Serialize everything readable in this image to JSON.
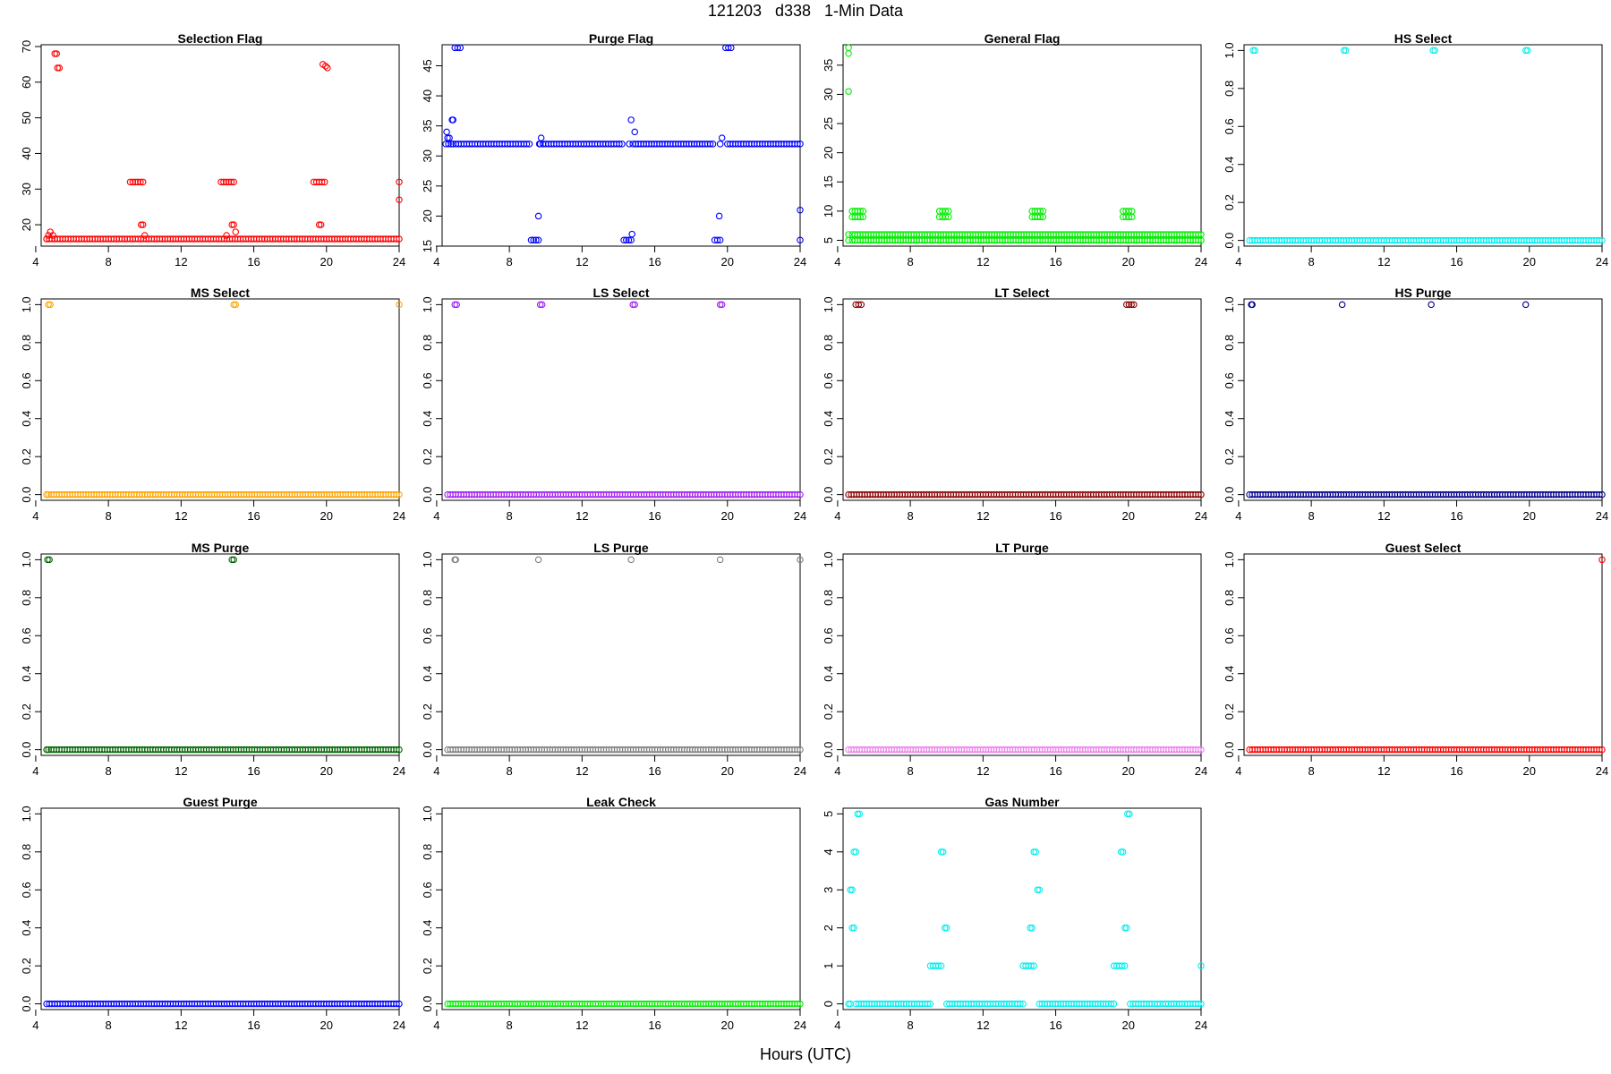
{
  "title": "121203   d338   1-Min Data",
  "xlabel": "Hours (UTC)",
  "chart_data": [
    {
      "type": "scatter",
      "title": "Selection Flag",
      "color": "#ff0000",
      "xlim": [
        4.3,
        24
      ],
      "ylim": [
        14,
        70.5
      ],
      "yticks": [
        20,
        30,
        40,
        50,
        60,
        70
      ],
      "xticks": [
        4,
        8,
        12,
        16,
        20,
        24
      ],
      "series": [
        {
          "x": [
            4.6,
            24
          ],
          "y": [
            16,
            16
          ],
          "dense": true
        },
        {
          "x": [
            9.2,
            9.9
          ],
          "y": [
            32,
            32
          ],
          "dense": true
        },
        {
          "x": [
            14.2,
            14.9
          ],
          "y": [
            32,
            32
          ],
          "dense": true
        },
        {
          "x": [
            19.3,
            19.9
          ],
          "y": [
            32,
            32
          ],
          "dense": true
        }
      ],
      "points": [
        [
          4.6,
          16
        ],
        [
          4.7,
          17
        ],
        [
          4.8,
          18
        ],
        [
          4.95,
          17
        ],
        [
          5.05,
          68
        ],
        [
          5.15,
          68
        ],
        [
          5.2,
          64
        ],
        [
          5.3,
          64
        ],
        [
          9.8,
          20
        ],
        [
          9.9,
          20
        ],
        [
          10.0,
          17
        ],
        [
          14.5,
          17
        ],
        [
          14.8,
          20
        ],
        [
          14.9,
          20
        ],
        [
          15.0,
          18
        ],
        [
          19.6,
          20
        ],
        [
          19.7,
          20
        ],
        [
          19.8,
          65
        ],
        [
          19.95,
          64.5
        ],
        [
          20.05,
          64
        ],
        [
          24,
          32
        ],
        [
          24,
          27
        ]
      ]
    },
    {
      "type": "scatter",
      "title": "Purge Flag",
      "color": "#0000ff",
      "xlim": [
        4.3,
        24
      ],
      "ylim": [
        15,
        48.5
      ],
      "yticks": [
        15,
        20,
        25,
        30,
        35,
        40,
        45
      ],
      "xticks": [
        4,
        8,
        12,
        16,
        20,
        24
      ],
      "series": [
        {
          "x": [
            4.9,
            9.1
          ],
          "y": [
            32,
            32
          ],
          "dense": true
        },
        {
          "x": [
            9.7,
            14.2
          ],
          "y": [
            32,
            32
          ],
          "dense": true
        },
        {
          "x": [
            14.8,
            19.2
          ],
          "y": [
            32,
            32
          ],
          "dense": true
        },
        {
          "x": [
            20.0,
            24
          ],
          "y": [
            32,
            32
          ],
          "dense": true
        },
        {
          "x": [
            9.2,
            9.6
          ],
          "y": [
            16,
            16
          ],
          "dense": true
        },
        {
          "x": [
            14.3,
            14.7
          ],
          "y": [
            16,
            16
          ],
          "dense": true
        },
        {
          "x": [
            19.3,
            19.6
          ],
          "y": [
            16,
            16
          ],
          "dense": true
        },
        {
          "x": [
            5.0,
            5.3
          ],
          "y": [
            48,
            48
          ],
          "dense": true
        },
        {
          "x": [
            19.9,
            20.2
          ],
          "y": [
            48,
            48
          ],
          "dense": true
        }
      ],
      "points": [
        [
          4.5,
          32
        ],
        [
          4.55,
          34
        ],
        [
          4.6,
          33
        ],
        [
          4.65,
          32
        ],
        [
          4.7,
          33
        ],
        [
          4.8,
          32
        ],
        [
          4.85,
          36
        ],
        [
          4.9,
          36
        ],
        [
          9.6,
          20
        ],
        [
          9.65,
          32
        ],
        [
          9.75,
          33
        ],
        [
          14.6,
          32
        ],
        [
          14.7,
          36
        ],
        [
          14.75,
          17
        ],
        [
          14.9,
          34
        ],
        [
          19.55,
          20
        ],
        [
          19.6,
          32
        ],
        [
          19.7,
          33
        ],
        [
          24,
          21
        ],
        [
          24,
          16
        ]
      ]
    },
    {
      "type": "scatter",
      "title": "General Flag",
      "color": "#00ee00",
      "xlim": [
        4.3,
        24
      ],
      "ylim": [
        4,
        38.5
      ],
      "yticks": [
        5,
        10,
        15,
        20,
        25,
        30,
        35
      ],
      "xticks": [
        4,
        8,
        12,
        16,
        20,
        24
      ],
      "series": [
        {
          "x": [
            4.8,
            24
          ],
          "y": [
            6,
            6
          ],
          "dense": true
        },
        {
          "x": [
            4.8,
            24
          ],
          "y": [
            5,
            5
          ],
          "dense": true
        },
        {
          "x": [
            4.8,
            5.4
          ],
          "y": [
            9,
            9
          ],
          "dense": true
        },
        {
          "x": [
            4.8,
            5.4
          ],
          "y": [
            10,
            10
          ],
          "dense": true
        },
        {
          "x": [
            9.6,
            10.1
          ],
          "y": [
            9,
            9
          ],
          "dense": true
        },
        {
          "x": [
            9.6,
            10.1
          ],
          "y": [
            10,
            10
          ],
          "dense": true
        },
        {
          "x": [
            14.7,
            15.3
          ],
          "y": [
            9,
            9
          ],
          "dense": true
        },
        {
          "x": [
            14.7,
            15.3
          ],
          "y": [
            10,
            10
          ],
          "dense": true
        },
        {
          "x": [
            19.7,
            20.2
          ],
          "y": [
            9,
            9
          ],
          "dense": true
        },
        {
          "x": [
            19.7,
            20.2
          ],
          "y": [
            10,
            10
          ],
          "dense": true
        }
      ],
      "points": [
        [
          4.6,
          38
        ],
        [
          4.6,
          37
        ],
        [
          4.6,
          30.5
        ],
        [
          4.6,
          6
        ],
        [
          4.6,
          5
        ]
      ]
    },
    {
      "type": "scatter",
      "title": "HS Select",
      "color": "#00eeee",
      "xlim": [
        4.3,
        24
      ],
      "ylim": [
        -0.03,
        1.03
      ],
      "yticks": [
        0.0,
        0.2,
        0.4,
        0.6,
        0.8,
        1.0
      ],
      "xticks": [
        4,
        8,
        12,
        16,
        20,
        24
      ],
      "series": [
        {
          "x": [
            4.6,
            24
          ],
          "y": [
            0,
            0
          ],
          "dense": true
        }
      ],
      "points": [
        [
          4.8,
          1
        ],
        [
          4.9,
          1
        ],
        [
          9.8,
          1
        ],
        [
          9.9,
          1
        ],
        [
          14.7,
          1
        ],
        [
          14.8,
          1
        ],
        [
          19.8,
          1
        ],
        [
          19.9,
          1
        ]
      ]
    },
    {
      "type": "scatter",
      "title": "MS Select",
      "color": "#ffa500",
      "xlim": [
        4.3,
        24
      ],
      "ylim": [
        -0.03,
        1.03
      ],
      "yticks": [
        0.0,
        0.2,
        0.4,
        0.6,
        0.8,
        1.0
      ],
      "xticks": [
        4,
        8,
        12,
        16,
        20,
        24
      ],
      "series": [
        {
          "x": [
            4.7,
            24
          ],
          "y": [
            0,
            0
          ],
          "dense": true
        }
      ],
      "points": [
        [
          4.6,
          0
        ],
        [
          4.7,
          1
        ],
        [
          4.8,
          1
        ],
        [
          14.9,
          1
        ],
        [
          15.0,
          1
        ],
        [
          24,
          1
        ]
      ]
    },
    {
      "type": "scatter",
      "title": "LS Select",
      "color": "#a020f0",
      "xlim": [
        4.3,
        24
      ],
      "ylim": [
        -0.03,
        1.03
      ],
      "yticks": [
        0.0,
        0.2,
        0.4,
        0.6,
        0.8,
        1.0
      ],
      "xticks": [
        4,
        8,
        12,
        16,
        20,
        24
      ],
      "series": [
        {
          "x": [
            4.6,
            24
          ],
          "y": [
            0,
            0
          ],
          "dense": true
        }
      ],
      "points": [
        [
          5.0,
          1
        ],
        [
          5.1,
          1
        ],
        [
          9.7,
          1
        ],
        [
          9.8,
          1
        ],
        [
          14.8,
          1
        ],
        [
          14.9,
          1
        ],
        [
          19.6,
          1
        ],
        [
          19.7,
          1
        ]
      ]
    },
    {
      "type": "scatter",
      "title": "LT Select",
      "color": "#8b0000",
      "xlim": [
        4.3,
        24
      ],
      "ylim": [
        -0.03,
        1.03
      ],
      "yticks": [
        0.0,
        0.2,
        0.4,
        0.6,
        0.8,
        1.0
      ],
      "xticks": [
        4,
        8,
        12,
        16,
        20,
        24
      ],
      "series": [
        {
          "x": [
            4.6,
            24
          ],
          "y": [
            0,
            0
          ],
          "dense": true
        },
        {
          "x": [
            5.0,
            5.3
          ],
          "y": [
            1,
            1
          ],
          "dense": true
        },
        {
          "x": [
            19.9,
            20.3
          ],
          "y": [
            1,
            1
          ],
          "dense": true
        }
      ],
      "points": []
    },
    {
      "type": "scatter",
      "title": "HS Purge",
      "color": "#00008b",
      "xlim": [
        4.3,
        24
      ],
      "ylim": [
        -0.03,
        1.03
      ],
      "yticks": [
        0.0,
        0.2,
        0.4,
        0.6,
        0.8,
        1.0
      ],
      "xticks": [
        4,
        8,
        12,
        16,
        20,
        24
      ],
      "series": [
        {
          "x": [
            4.6,
            24
          ],
          "y": [
            0,
            0
          ],
          "dense": true
        }
      ],
      "points": [
        [
          4.7,
          1
        ],
        [
          4.75,
          1
        ],
        [
          9.7,
          1
        ],
        [
          14.6,
          1
        ],
        [
          19.8,
          1
        ]
      ]
    },
    {
      "type": "scatter",
      "title": "MS Purge",
      "color": "#006400",
      "xlim": [
        4.3,
        24
      ],
      "ylim": [
        -0.03,
        1.03
      ],
      "yticks": [
        0.0,
        0.2,
        0.4,
        0.6,
        0.8,
        1.0
      ],
      "xticks": [
        4,
        8,
        12,
        16,
        20,
        24
      ],
      "series": [
        {
          "x": [
            4.7,
            24
          ],
          "y": [
            0,
            0
          ],
          "dense": true
        }
      ],
      "points": [
        [
          4.6,
          0
        ],
        [
          4.65,
          1
        ],
        [
          4.75,
          1
        ],
        [
          14.8,
          1
        ],
        [
          14.9,
          1
        ]
      ]
    },
    {
      "type": "scatter",
      "title": "LS Purge",
      "color": "#808080",
      "xlim": [
        4.3,
        24
      ],
      "ylim": [
        -0.03,
        1.03
      ],
      "yticks": [
        0.0,
        0.2,
        0.4,
        0.6,
        0.8,
        1.0
      ],
      "xticks": [
        4,
        8,
        12,
        16,
        20,
        24
      ],
      "series": [
        {
          "x": [
            4.6,
            24
          ],
          "y": [
            0,
            0
          ],
          "dense": true
        }
      ],
      "points": [
        [
          5.0,
          1
        ],
        [
          5.05,
          1
        ],
        [
          9.6,
          1
        ],
        [
          14.7,
          1
        ],
        [
          19.6,
          1
        ],
        [
          24,
          1
        ]
      ]
    },
    {
      "type": "scatter",
      "title": "LT Purge",
      "color": "#ee82ee",
      "xlim": [
        4.3,
        24
      ],
      "ylim": [
        -0.03,
        1.03
      ],
      "yticks": [
        0.0,
        0.2,
        0.4,
        0.6,
        0.8,
        1.0
      ],
      "xticks": [
        4,
        8,
        12,
        16,
        20,
        24
      ],
      "series": [
        {
          "x": [
            4.6,
            24
          ],
          "y": [
            0,
            0
          ],
          "dense": true
        }
      ],
      "points": []
    },
    {
      "type": "scatter",
      "title": "Guest Select",
      "color": "#ff0000",
      "xlim": [
        4.3,
        24
      ],
      "ylim": [
        -0.03,
        1.03
      ],
      "yticks": [
        0.0,
        0.2,
        0.4,
        0.6,
        0.8,
        1.0
      ],
      "xticks": [
        4,
        8,
        12,
        16,
        20,
        24
      ],
      "series": [
        {
          "x": [
            4.6,
            24
          ],
          "y": [
            0,
            0
          ],
          "dense": true
        }
      ],
      "points": [
        [
          24,
          1
        ]
      ]
    },
    {
      "type": "scatter",
      "title": "Guest Purge",
      "color": "#0000ff",
      "xlim": [
        4.3,
        24
      ],
      "ylim": [
        -0.03,
        1.03
      ],
      "yticks": [
        0.0,
        0.2,
        0.4,
        0.6,
        0.8,
        1.0
      ],
      "xticks": [
        4,
        8,
        12,
        16,
        20,
        24
      ],
      "series": [
        {
          "x": [
            4.6,
            24
          ],
          "y": [
            0,
            0
          ],
          "dense": true
        }
      ],
      "points": []
    },
    {
      "type": "scatter",
      "title": "Leak Check",
      "color": "#00ee00",
      "xlim": [
        4.3,
        24
      ],
      "ylim": [
        -0.03,
        1.03
      ],
      "yticks": [
        0.0,
        0.2,
        0.4,
        0.6,
        0.8,
        1.0
      ],
      "xticks": [
        4,
        8,
        12,
        16,
        20,
        24
      ],
      "series": [
        {
          "x": [
            4.6,
            24
          ],
          "y": [
            0,
            0
          ],
          "dense": true
        }
      ],
      "points": []
    },
    {
      "type": "scatter",
      "title": "Gas Number",
      "color": "#00eeee",
      "xlim": [
        4.3,
        24
      ],
      "ylim": [
        -0.15,
        5.15
      ],
      "yticks": [
        0,
        1,
        2,
        3,
        4,
        5
      ],
      "xticks": [
        4,
        8,
        12,
        16,
        20,
        24
      ],
      "series": [
        {
          "x": [
            5.0,
            9.1
          ],
          "y": [
            0,
            0
          ],
          "dense": true
        },
        {
          "x": [
            10.0,
            14.2
          ],
          "y": [
            0,
            0
          ],
          "dense": true
        },
        {
          "x": [
            15.1,
            19.2
          ],
          "y": [
            0,
            0
          ],
          "dense": true
        },
        {
          "x": [
            20.1,
            24
          ],
          "y": [
            0,
            0
          ],
          "dense": true
        },
        {
          "x": [
            9.1,
            9.7
          ],
          "y": [
            1,
            1
          ],
          "dense": true
        },
        {
          "x": [
            14.2,
            14.8
          ],
          "y": [
            1,
            1
          ],
          "dense": true
        },
        {
          "x": [
            19.2,
            19.8
          ],
          "y": [
            1,
            1
          ],
          "dense": true
        }
      ],
      "points": [
        [
          4.6,
          0
        ],
        [
          4.7,
          0
        ],
        [
          4.7,
          3
        ],
        [
          4.8,
          3
        ],
        [
          4.8,
          2
        ],
        [
          4.9,
          2
        ],
        [
          4.9,
          4
        ],
        [
          5.0,
          4
        ],
        [
          5.1,
          5
        ],
        [
          5.2,
          5
        ],
        [
          9.7,
          4
        ],
        [
          9.8,
          4
        ],
        [
          9.9,
          2
        ],
        [
          10.0,
          2
        ],
        [
          14.6,
          2
        ],
        [
          14.7,
          2
        ],
        [
          14.8,
          4
        ],
        [
          14.9,
          4
        ],
        [
          15.0,
          3
        ],
        [
          15.1,
          3
        ],
        [
          19.6,
          4
        ],
        [
          19.7,
          4
        ],
        [
          19.8,
          2
        ],
        [
          19.9,
          2
        ],
        [
          19.95,
          5
        ],
        [
          20.05,
          5
        ],
        [
          24,
          1
        ]
      ]
    }
  ]
}
